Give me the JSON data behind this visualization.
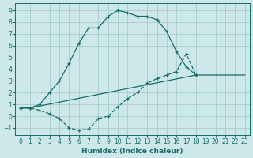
{
  "xlabel": "Humidex (Indice chaleur)",
  "bg_color": "#cce8e8",
  "grid_color": "#aacccc",
  "line_color": "#1a6b6b",
  "xlim": [
    -0.5,
    23.5
  ],
  "ylim": [
    -1.6,
    9.6
  ],
  "xticks": [
    0,
    1,
    2,
    3,
    4,
    5,
    6,
    7,
    8,
    9,
    10,
    11,
    12,
    13,
    14,
    15,
    16,
    17,
    18,
    19,
    20,
    21,
    22,
    23
  ],
  "yticks": [
    -1,
    0,
    1,
    2,
    3,
    4,
    5,
    6,
    7,
    8,
    9
  ],
  "curve_upper_x": [
    0,
    1,
    2,
    3,
    4,
    5,
    6,
    7,
    8,
    9,
    10,
    11,
    12,
    13,
    14,
    15,
    16,
    17,
    18
  ],
  "curve_upper_y": [
    0.7,
    0.7,
    1.0,
    2.0,
    3.0,
    4.5,
    6.2,
    7.5,
    7.5,
    8.5,
    9.0,
    8.8,
    8.5,
    8.5,
    8.2,
    7.2,
    5.5,
    4.2,
    3.5
  ],
  "curve_lower_x": [
    0,
    1,
    2,
    3,
    4,
    5,
    6,
    7,
    8,
    9,
    10,
    11,
    12,
    13,
    14,
    15,
    16,
    17,
    18
  ],
  "curve_lower_y": [
    0.7,
    0.7,
    0.5,
    0.2,
    -0.2,
    -1.0,
    -1.2,
    -1.1,
    -0.2,
    0.0,
    0.8,
    1.5,
    2.0,
    2.8,
    3.2,
    3.5,
    3.8,
    5.3,
    3.5
  ],
  "line_diag_x": [
    0,
    1,
    18,
    21,
    22,
    23
  ],
  "line_diag_y": [
    0.7,
    0.7,
    3.5,
    3.5,
    3.5,
    3.5
  ]
}
